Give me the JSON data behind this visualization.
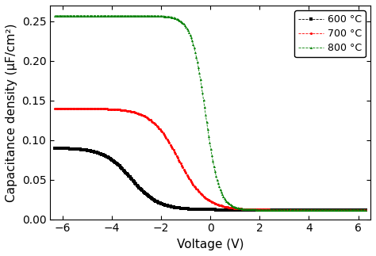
{
  "title": "",
  "xlabel": "Voltage (V)",
  "ylabel": "Capacitance density (μF/cm²)",
  "xlim": [
    -6.5,
    6.5
  ],
  "ylim": [
    0.0,
    0.27
  ],
  "xticks": [
    -6,
    -4,
    -2,
    0,
    2,
    4,
    6
  ],
  "yticks": [
    0.0,
    0.05,
    0.1,
    0.15,
    0.2,
    0.25
  ],
  "legend_labels": [
    "600 °C",
    "700 °C",
    "800 °C"
  ],
  "series": {
    "600C": {
      "color": "black",
      "marker": "s",
      "Cmax": 0.09,
      "Cmin": 0.012,
      "V_flat": -3.2,
      "k": 0.55
    },
    "700C": {
      "color": "red",
      "marker": "o",
      "Cmax": 0.14,
      "Cmin": 0.012,
      "V_flat": -1.3,
      "k": 0.55
    },
    "800C": {
      "color": "green",
      "marker": "^",
      "Cmax": 0.257,
      "Cmin": 0.012,
      "V_flat": -0.2,
      "k": 0.28
    }
  },
  "background_color": "#ffffff",
  "n_points": 300,
  "markersize": 2.2,
  "markevery": 1,
  "linewidth": 0,
  "xlabel_fontsize": 11,
  "ylabel_fontsize": 11,
  "tick_fontsize": 10,
  "legend_fontsize": 9
}
